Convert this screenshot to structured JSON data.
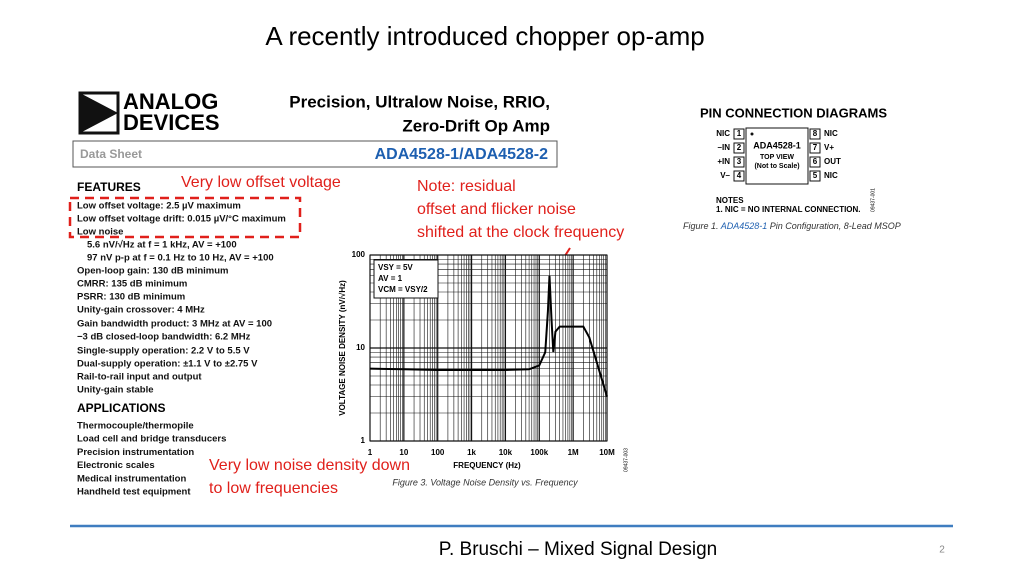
{
  "title": "A recently introduced chopper op-amp",
  "datasheet": {
    "logo": [
      "ANALOG",
      "DEVICES"
    ],
    "heading": [
      "Precision, Ultralow Noise, RRIO,",
      "Zero-Drift Op Amp"
    ],
    "label": "Data Sheet",
    "part": "ADA4528-1/ADA4528-2",
    "features_title": "FEATURES",
    "features": [
      "Low offset voltage: 2.5 µV maximum",
      "Low offset voltage drift: 0.015 µV/°C maximum",
      "Low noise",
      "5.6 nV/√Hz at f = 1 kHz, AV = +100",
      "97 nV p-p at f = 0.1 Hz to 10 Hz, AV = +100",
      "Open-loop gain: 130 dB minimum",
      "CMRR: 135 dB minimum",
      "PSRR: 130 dB minimum",
      "Unity-gain crossover: 4 MHz",
      "Gain bandwidth product: 3 MHz at AV = 100",
      "−3 dB closed-loop bandwidth: 6.2 MHz",
      "Single-supply operation: 2.2 V to 5.5 V",
      "Dual-supply operation: ±1.1 V to ±2.75 V",
      "Rail-to-rail input and output",
      "Unity-gain stable"
    ],
    "applications_title": "APPLICATIONS",
    "applications": [
      "Thermocouple/thermopile",
      "Load cell and bridge transducers",
      "Precision instrumentation",
      "Electronic scales",
      "Medical instrumentation",
      "Handheld test equipment"
    ]
  },
  "pins": {
    "title": "PIN CONNECTION DIAGRAMS",
    "chip": [
      "ADA4528-1",
      "TOP VIEW",
      "(Not to Scale)"
    ],
    "left": [
      {
        "label": "NIC",
        "num": "1"
      },
      {
        "label": "–IN",
        "num": "2"
      },
      {
        "label": "+IN",
        "num": "3"
      },
      {
        "label": "V–",
        "num": "4"
      }
    ],
    "right": [
      {
        "label": "NIC",
        "num": "8"
      },
      {
        "label": "V+",
        "num": "7"
      },
      {
        "label": "OUT",
        "num": "6"
      },
      {
        "label": "NIC",
        "num": "5"
      }
    ],
    "notes_title": "NOTES",
    "note": "1. NIC = NO INTERNAL CONNECTION.",
    "code": "09437-001",
    "caption": [
      "Figure 1. ",
      "ADA4528-1",
      " Pin Configuration, 8-Lead MSOP"
    ]
  },
  "annotations": {
    "offset": "Very low offset voltage",
    "note": [
      "Note: residual",
      "offset and flicker noise",
      "shifted at the clock frequency"
    ],
    "noise": [
      "Very low noise density down",
      "to low frequencies"
    ]
  },
  "chart_data": {
    "type": "line",
    "x_label": "FREQUENCY (Hz)",
    "y_label": "VOLTAGE NOISE DENSITY (nV/√Hz)",
    "legend_lines": [
      "VSY = 5V",
      "AV = 1",
      "VCM = VSY/2"
    ],
    "caption": "Figure 3. Voltage Noise Density vs. Frequency",
    "code": "09437-003",
    "x": [
      1,
      10,
      100,
      1000,
      10000,
      50000,
      100000,
      150000,
      180000,
      200000,
      230000,
      260000,
      300000,
      400000,
      1000000,
      2000000,
      3000000,
      5000000,
      10000000
    ],
    "values": [
      6.0,
      5.9,
      5.8,
      5.8,
      5.8,
      5.9,
      6.5,
      9,
      25,
      60,
      20,
      9,
      15,
      17,
      17,
      17,
      13,
      7,
      3
    ],
    "color": "#000000",
    "log_scale": true,
    "grid": true,
    "xlim": [
      1,
      10000000
    ],
    "ylim": [
      1,
      100
    ],
    "xticks": [
      1,
      10,
      100,
      {
        "value": 1000,
        "label": "1k"
      },
      {
        "value": 10000,
        "label": "10k"
      },
      {
        "value": 100000,
        "label": "100k"
      },
      {
        "value": 1000000,
        "label": "1M"
      },
      {
        "value": 10000000,
        "label": "10M"
      }
    ],
    "yticks": [
      1,
      10,
      100
    ]
  },
  "footer": {
    "text": "P. Bruschi – Mixed Signal Design",
    "page": "2"
  }
}
